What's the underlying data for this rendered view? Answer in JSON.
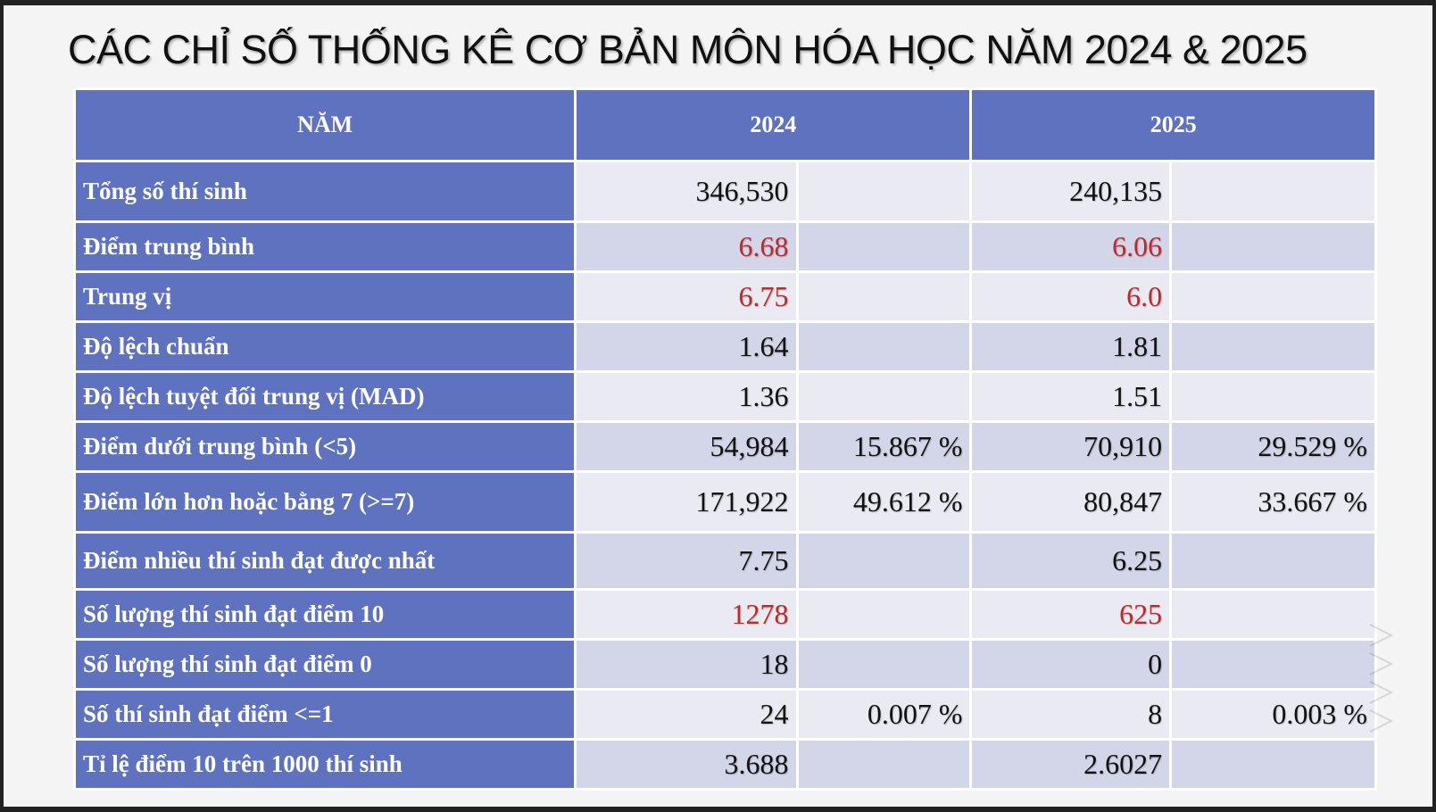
{
  "title": "CÁC CHỈ SỐ THỐNG KÊ CƠ BẢN MÔN HÓA HỌC NĂM 2024 & 2025",
  "header": {
    "label": "NĂM",
    "year1": "2024",
    "year2": "2025"
  },
  "rows": [
    {
      "label": "Tổng số thí sinh",
      "v2024": "346,530",
      "p2024": "",
      "v2025": "240,135",
      "p2025": ""
    },
    {
      "label": "Điểm trung bình",
      "v2024": "6.68",
      "p2024": "",
      "v2025": "6.06",
      "p2025": ""
    },
    {
      "label": "Trung vị",
      "v2024": "6.75",
      "p2024": "",
      "v2025": "6.0",
      "p2025": ""
    },
    {
      "label": "Độ lệch chuẩn",
      "v2024": "1.64",
      "p2024": "",
      "v2025": "1.81",
      "p2025": ""
    },
    {
      "label": "Độ lệch tuyệt đối trung vị (MAD)",
      "v2024": "1.36",
      "p2024": "",
      "v2025": "1.51",
      "p2025": ""
    },
    {
      "label": "Điểm dưới trung bình (<5)",
      "v2024": "54,984",
      "p2024": "15.867 %",
      "v2025": "70,910",
      "p2025": "29.529 %"
    },
    {
      "label": "Điểm lớn hơn hoặc bằng 7 (>=7)",
      "v2024": "171,922",
      "p2024": "49.612 %",
      "v2025": "80,847",
      "p2025": "33.667 %"
    },
    {
      "label": "Điểm nhiều thí sinh đạt được nhất",
      "v2024": "7.75",
      "p2024": "",
      "v2025": "6.25",
      "p2025": ""
    },
    {
      "label": "Số lượng thí sinh đạt điểm 10",
      "v2024": "1278",
      "p2024": "",
      "v2025": "625",
      "p2025": ""
    },
    {
      "label": "Số lượng thí sinh đạt điểm 0",
      "v2024": "18",
      "p2024": "",
      "v2025": "0",
      "p2025": ""
    },
    {
      "label": "Số thí sinh đạt điểm <=1",
      "v2024": "24",
      "p2024": "0.007 %",
      "v2025": "8",
      "p2025": "0.003 %"
    },
    {
      "label": "Tỉ lệ điểm 10 trên 1000 thí sinh",
      "v2024": "3.688",
      "p2024": "",
      "v2025": "2.6027",
      "p2025": ""
    }
  ],
  "colors": {
    "header_bg": "#5f72c0",
    "row_odd": "#d3d6e8",
    "row_even": "#eaebf2",
    "highlight_text": "#c0292a"
  }
}
